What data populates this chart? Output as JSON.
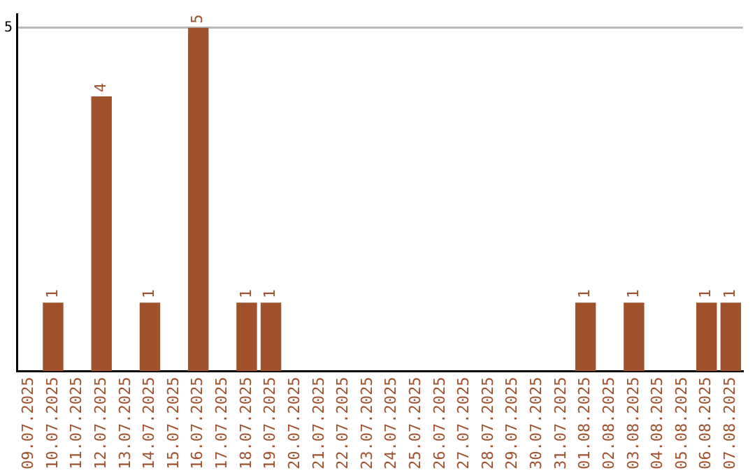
{
  "chart_data": {
    "type": "bar",
    "categories": [
      "09.07.2025",
      "10.07.2025",
      "11.07.2025",
      "12.07.2025",
      "13.07.2025",
      "14.07.2025",
      "15.07.2025",
      "16.07.2025",
      "17.07.2025",
      "18.07.2025",
      "19.07.2025",
      "20.07.2025",
      "21.07.2025",
      "22.07.2025",
      "23.07.2025",
      "24.07.2025",
      "25.07.2025",
      "26.07.2025",
      "27.07.2025",
      "28.07.2025",
      "29.07.2025",
      "30.07.2025",
      "31.07.2025",
      "01.08.2025",
      "02.08.2025",
      "03.08.2025",
      "04.08.2025",
      "05.08.2025",
      "06.08.2025",
      "07.08.2025"
    ],
    "values": [
      0,
      1,
      0,
      4,
      0,
      1,
      0,
      5,
      0,
      1,
      1,
      0,
      0,
      0,
      0,
      0,
      0,
      0,
      0,
      0,
      0,
      0,
      0,
      1,
      0,
      1,
      0,
      0,
      1,
      1
    ],
    "value_labels": [
      null,
      "1",
      null,
      "4",
      null,
      "1",
      null,
      "5",
      null,
      "1",
      "1",
      null,
      null,
      null,
      null,
      null,
      null,
      null,
      null,
      null,
      null,
      null,
      null,
      "1",
      null,
      "1",
      null,
      null,
      "1",
      "1"
    ],
    "color": "#a0522d",
    "ylim": [
      0,
      5.2
    ],
    "yticks": [
      5
    ],
    "grid": "y",
    "legend": false
  }
}
